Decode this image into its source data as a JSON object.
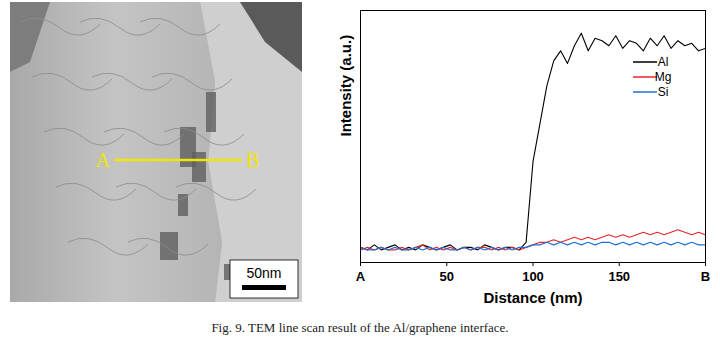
{
  "tem_image": {
    "markers": [
      "A",
      "B"
    ],
    "scale_bar": "50nm"
  },
  "chart_data": {
    "type": "line",
    "x_label": "Distance (nm)",
    "y_label": "Intensity (a.u.)",
    "x": [
      0,
      4,
      8,
      12,
      16,
      20,
      24,
      28,
      32,
      36,
      40,
      44,
      48,
      52,
      56,
      60,
      64,
      68,
      72,
      76,
      80,
      84,
      88,
      92,
      96,
      100,
      104,
      108,
      112,
      116,
      120,
      124,
      128,
      132,
      136,
      140,
      144,
      148,
      152,
      156,
      160,
      164,
      168,
      172,
      176,
      180,
      184,
      188,
      192,
      196,
      200
    ],
    "series": [
      {
        "name": "Al",
        "color": "#000000",
        "values": [
          6,
          5,
          7,
          5,
          6,
          7,
          5,
          6,
          5,
          7,
          6,
          5,
          6,
          7,
          5,
          6,
          6,
          5,
          7,
          6,
          5,
          6,
          6,
          5,
          8,
          40,
          55,
          70,
          80,
          84,
          79,
          86,
          91,
          84,
          89,
          88,
          86,
          90,
          85,
          88,
          87,
          84,
          89,
          86,
          90,
          85,
          88,
          86,
          87,
          84,
          85
        ]
      },
      {
        "name": "Mg",
        "color": "#e8262a",
        "values": [
          5,
          6,
          5,
          6,
          5,
          5,
          6,
          5,
          6,
          7,
          5,
          6,
          5,
          6,
          5,
          6,
          5,
          6,
          6,
          5,
          6,
          5,
          6,
          5,
          6,
          7,
          8,
          8,
          9,
          8,
          9,
          10,
          9,
          10,
          9,
          10,
          11,
          10,
          11,
          10,
          11,
          12,
          11,
          12,
          11,
          12,
          13,
          12,
          11,
          12,
          11
        ]
      },
      {
        "name": "Si",
        "color": "#1f6fd6",
        "values": [
          6,
          5,
          5,
          6,
          5,
          6,
          5,
          5,
          6,
          5,
          6,
          5,
          6,
          5,
          5,
          6,
          5,
          6,
          5,
          6,
          5,
          6,
          5,
          6,
          6,
          7,
          7,
          8,
          7,
          8,
          7,
          8,
          7,
          8,
          7,
          8,
          8,
          7,
          8,
          7,
          8,
          7,
          8,
          7,
          8,
          7,
          8,
          7,
          8,
          7,
          7
        ]
      }
    ],
    "xlim": [
      0,
      200
    ],
    "xticks": [
      {
        "value": 0,
        "label": "A"
      },
      50,
      100,
      150,
      {
        "value": 200,
        "label": "B"
      }
    ],
    "ylim": [
      0,
      100
    ],
    "tick_labels": "x",
    "legend": "top-right"
  },
  "caption": "Fig. 9. TEM line scan result of the Al/graphene interface."
}
